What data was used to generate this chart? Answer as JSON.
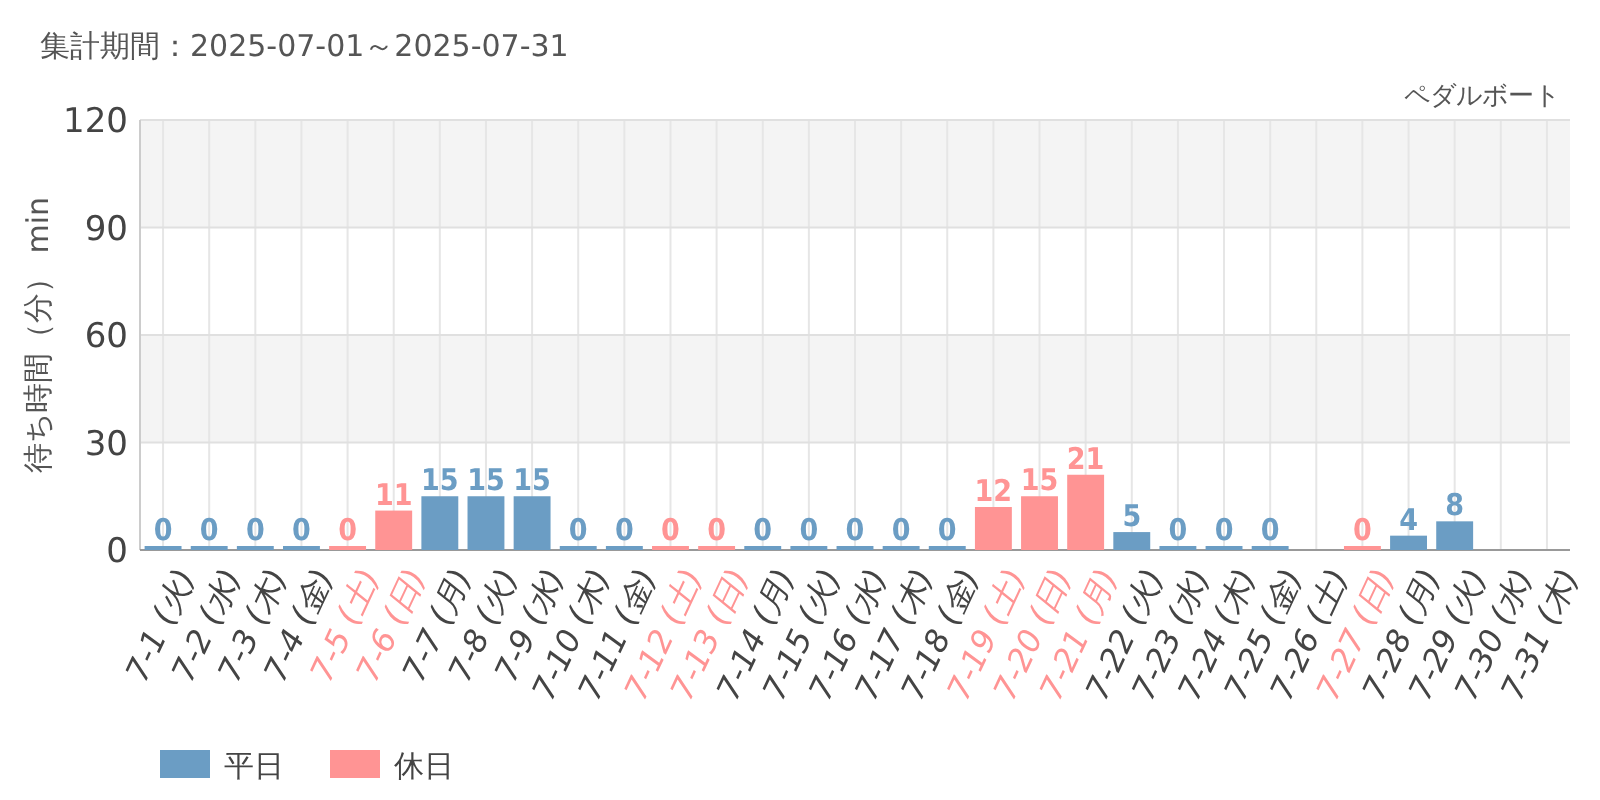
{
  "chart_data": {
    "type": "bar",
    "title": "集計期間：2025-07-01～2025-07-31",
    "subtitle": "ペダルボート",
    "ylabel": "待ち時間（分） min",
    "categories": [
      "7-1 (火)",
      "7-2 (水)",
      "7-3 (木)",
      "7-4 (金)",
      "7-5 (土)",
      "7-6 (日)",
      "7-7 (月)",
      "7-8 (火)",
      "7-9 (水)",
      "7-10 (木)",
      "7-11 (金)",
      "7-12 (土)",
      "7-13 (日)",
      "7-14 (月)",
      "7-15 (火)",
      "7-16 (水)",
      "7-17 (木)",
      "7-18 (金)",
      "7-19 (土)",
      "7-20 (日)",
      "7-21 (月)",
      "7-22 (火)",
      "7-23 (水)",
      "7-24 (木)",
      "7-25 (金)",
      "7-26 (土)",
      "7-27 (日)",
      "7-28 (月)",
      "7-29 (火)",
      "7-30 (水)",
      "7-31 (木)"
    ],
    "series": [
      {
        "name": "平日",
        "color": "#6b9dc4",
        "values": [
          0,
          0,
          0,
          0,
          null,
          null,
          15,
          15,
          15,
          0,
          0,
          null,
          null,
          0,
          0,
          0,
          0,
          0,
          null,
          null,
          null,
          5,
          0,
          0,
          0,
          null,
          null,
          4,
          8,
          null,
          null
        ]
      },
      {
        "name": "休日",
        "color": "#ff9494",
        "values": [
          null,
          null,
          null,
          null,
          0,
          11,
          null,
          null,
          null,
          null,
          null,
          0,
          0,
          null,
          null,
          null,
          null,
          null,
          12,
          15,
          21,
          null,
          null,
          null,
          null,
          null,
          0,
          null,
          null,
          null,
          null
        ]
      }
    ],
    "ylim": [
      0,
      120
    ],
    "yticks": [
      0,
      30,
      60,
      90,
      120
    ],
    "grid": true,
    "data_labels": true,
    "legend": "bottom left"
  }
}
